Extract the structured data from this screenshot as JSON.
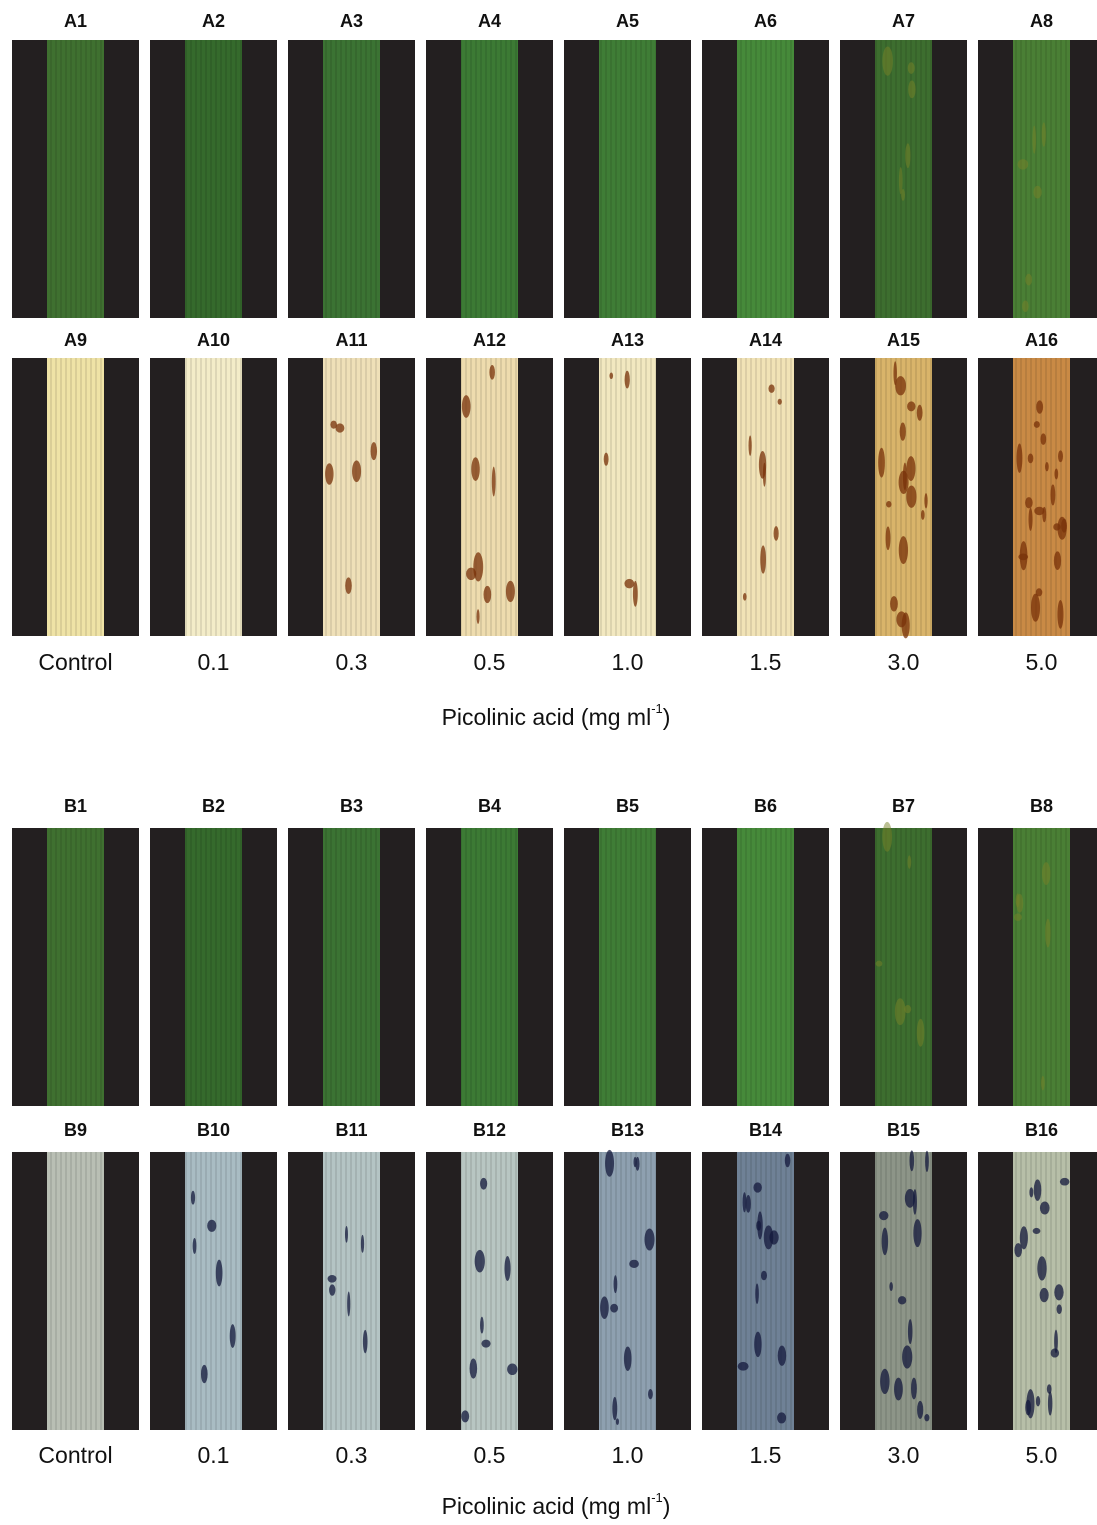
{
  "panels": [
    {
      "rows": [
        {
          "labels": [
            "A1",
            "A2",
            "A3",
            "A4",
            "A5",
            "A6",
            "A7",
            "A8"
          ]
        },
        {
          "labels": [
            "A9",
            "A10",
            "A11",
            "A12",
            "A13",
            "A14",
            "A15",
            "A16"
          ]
        }
      ],
      "concentrations": [
        "Control",
        "0.1",
        "0.3",
        "0.5",
        "1.0",
        "1.5",
        "3.0",
        "5.0"
      ],
      "axis_title": {
        "text": "Picolinic acid (mg ml",
        "superscript": "-1",
        "close": ")"
      }
    },
    {
      "rows": [
        {
          "labels": [
            "B1",
            "B2",
            "B3",
            "B4",
            "B5",
            "B6",
            "B7",
            "B8"
          ]
        },
        {
          "labels": [
            "B9",
            "B10",
            "B11",
            "B12",
            "B13",
            "B14",
            "B15",
            "B16"
          ]
        }
      ],
      "concentrations": [
        "Control",
        "0.1",
        "0.3",
        "0.5",
        "1.0",
        "1.5",
        "3.0",
        "5.0"
      ],
      "axis_title": {
        "text": "Picolinic acid (mg ml",
        "superscript": "-1",
        "close": ")"
      }
    }
  ]
}
